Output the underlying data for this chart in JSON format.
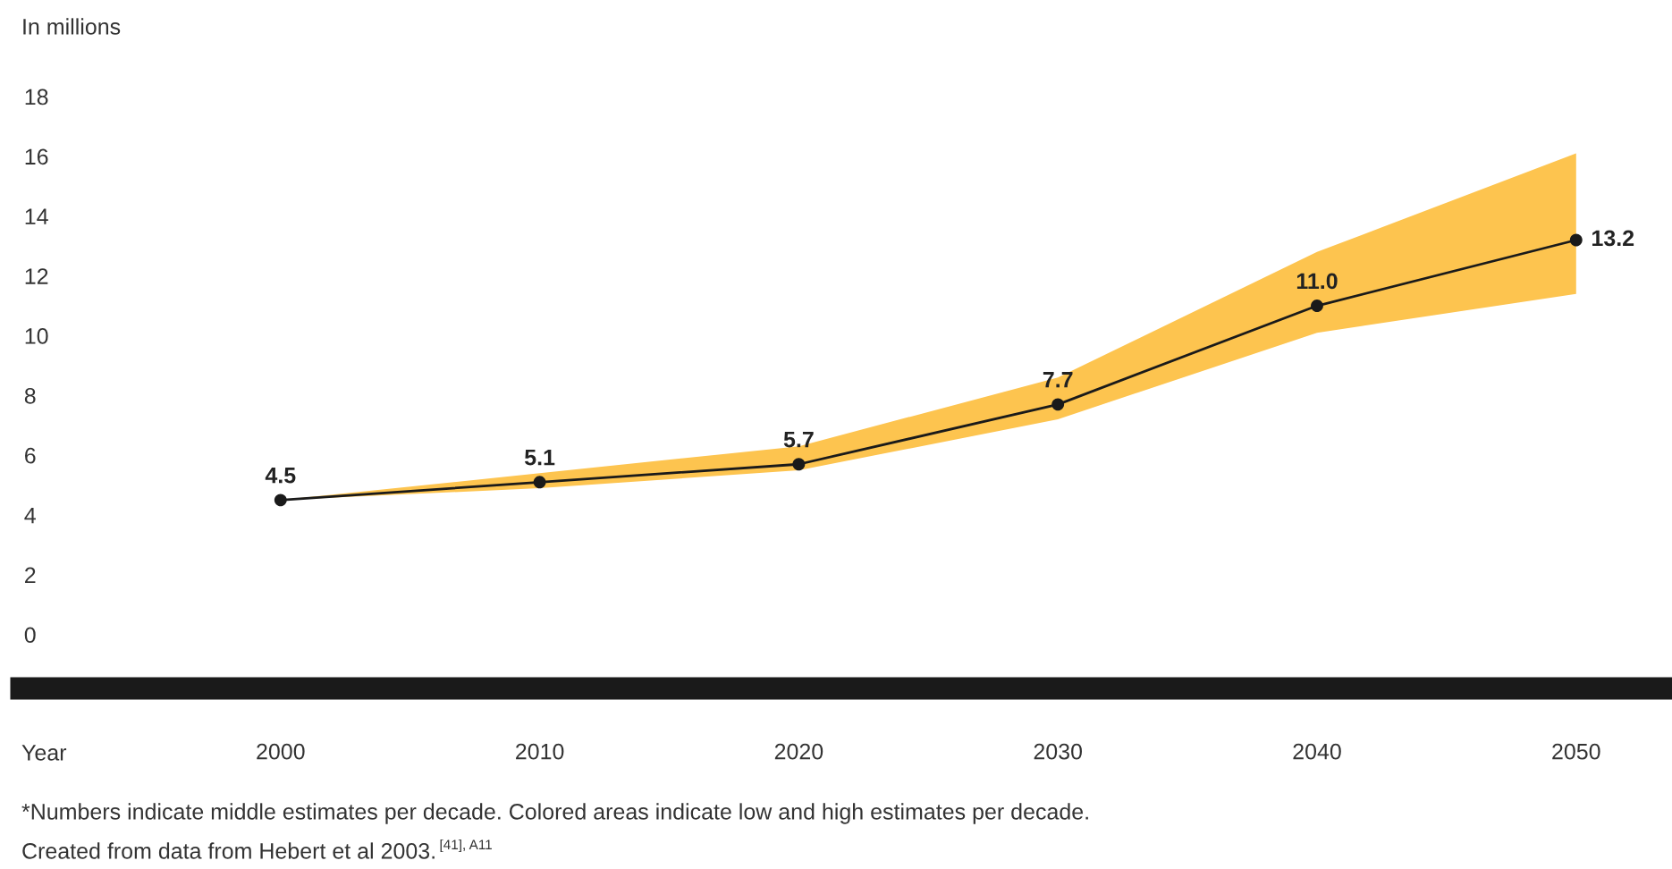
{
  "chart_data": {
    "type": "line",
    "ylabel": "In millions",
    "xlabel": "Year",
    "x": [
      2000,
      2010,
      2020,
      2030,
      2040,
      2050
    ],
    "series": [
      {
        "color": "#1a1a1a",
        "values": [
          4.5,
          5.1,
          5.7,
          7.7,
          11.0,
          13.2
        ],
        "lower": [
          4.5,
          4.9,
          5.5,
          7.2,
          10.1,
          11.4
        ],
        "upper": [
          4.5,
          5.4,
          6.3,
          8.6,
          12.8,
          16.1
        ],
        "value_labels": [
          "4.5",
          "5.1",
          "5.7",
          "7.7",
          "11.0",
          "13.2"
        ]
      }
    ],
    "xlim": [
      1990,
      2053.7
    ],
    "ylim": [
      -1.8,
      18
    ],
    "xticks": [
      2000,
      2010,
      2020,
      2030,
      2040,
      2050
    ],
    "yticks": [
      0,
      2,
      4,
      6,
      8,
      10,
      12,
      14,
      16,
      18
    ],
    "grid": false,
    "marker": "circle",
    "line_style": "solid",
    "annotations": [
      "*Numbers indicate middle estimates per decade. Colored areas indicate low and high estimates per decade.",
      "Created from data from Hebert et al 2003.$^{[41], A11}$"
    ]
  }
}
